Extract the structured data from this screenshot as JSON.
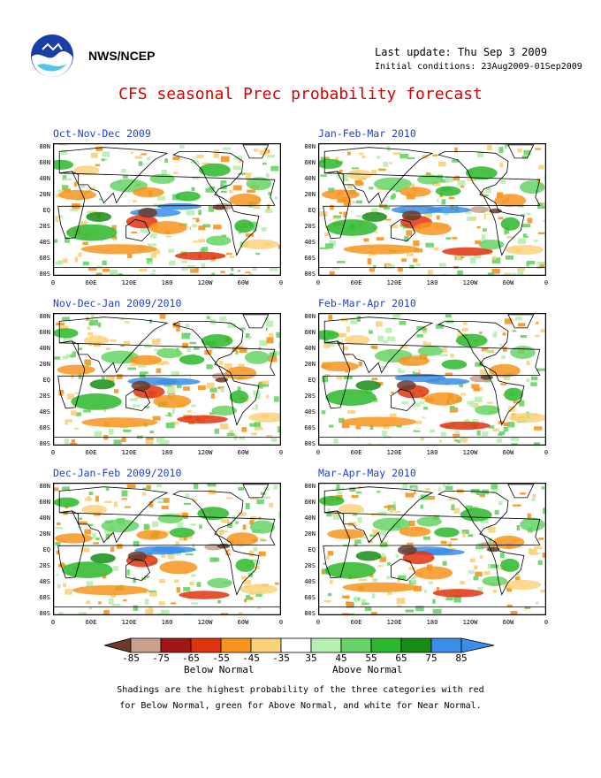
{
  "header": {
    "agency": "NWS/NCEP",
    "last_update": "Last update: Thu Sep  3 2009",
    "initial_conditions": "Initial conditions: 23Aug2009-01Sep2009",
    "title": "CFS seasonal Prec probability forecast"
  },
  "panels": [
    {
      "title": "Oct-Nov-Dec 2009",
      "seed": 11
    },
    {
      "title": "Jan-Feb-Mar 2010",
      "seed": 23
    },
    {
      "title": "Nov-Dec-Jan 2009/2010",
      "seed": 37
    },
    {
      "title": "Feb-Mar-Apr 2010",
      "seed": 41
    },
    {
      "title": "Dec-Jan-Feb 2009/2010",
      "seed": 53
    },
    {
      "title": "Mar-Apr-May 2010",
      "seed": 67
    }
  ],
  "axes": {
    "lat_labels": [
      "80N",
      "60N",
      "40N",
      "20N",
      "EQ",
      "20S",
      "40S",
      "60S",
      "80S"
    ],
    "lon_labels": [
      "0",
      "60E",
      "120E",
      "180",
      "120W",
      "60W",
      "0"
    ]
  },
  "colorbar": {
    "labels": [
      "-85",
      "-75",
      "-65",
      "-55",
      "-45",
      "-35",
      "35",
      "45",
      "55",
      "65",
      "75",
      "85"
    ],
    "colors": [
      "#6b3a2a",
      "#c8a08c",
      "#a31616",
      "#e0330d",
      "#f7941d",
      "#fbd27a",
      "#ffffff",
      "#b6f0b0",
      "#66d466",
      "#2cb82c",
      "#168c16",
      "#3a8de8",
      "#3a8de8"
    ],
    "below_label": "Below Normal",
    "above_label": "Above Normal"
  },
  "footnote": {
    "line1": "Shadings are the highest probability of the three categories with red",
    "line2": "for Below Normal, green for Above Normal, and white for Near Normal."
  }
}
